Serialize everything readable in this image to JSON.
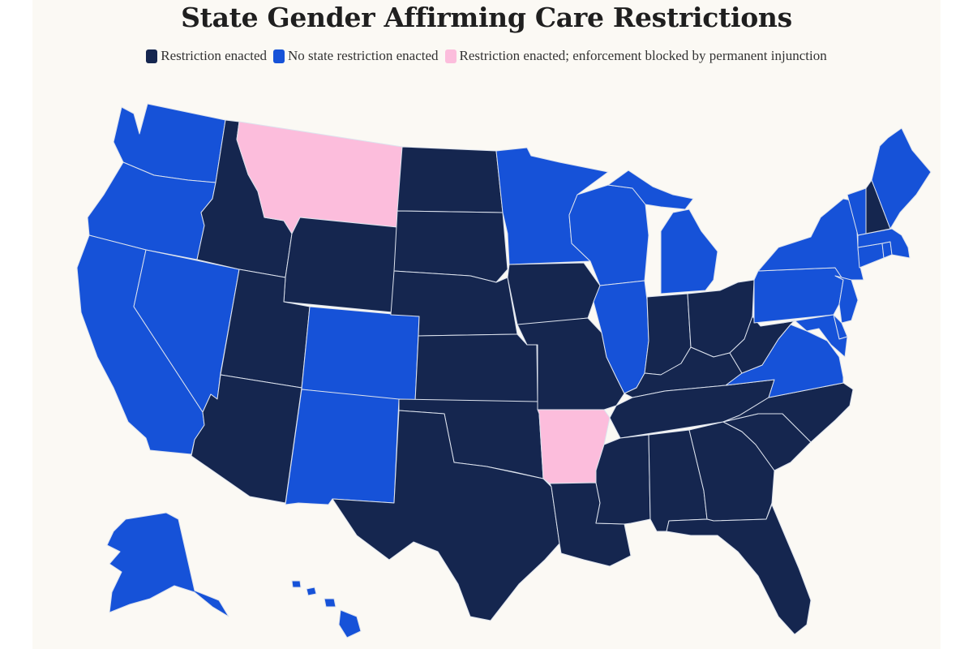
{
  "title": "State Gender Affirming Care Restrictions",
  "legend": [
    {
      "label": "Restriction enacted",
      "color": "#15264f"
    },
    {
      "label": "No state restriction enacted",
      "color": "#1652d8"
    },
    {
      "label": "Restriction enacted; enforcement blocked by permanent injunction",
      "color": "#fcbddc"
    }
  ],
  "colors": {
    "restricted": "#15264f",
    "none": "#1652d8",
    "blocked": "#fcbddc",
    "border": "#dde3ee",
    "background": "#fbf9f4"
  },
  "state_status": {
    "Washington": "none",
    "Oregon": "none",
    "California": "none",
    "Nevada": "none",
    "Idaho": "restricted",
    "Montana": "blocked",
    "Wyoming": "restricted",
    "Utah": "restricted",
    "Colorado": "none",
    "Arizona": "restricted",
    "New Mexico": "none",
    "North Dakota": "restricted",
    "South Dakota": "restricted",
    "Nebraska": "restricted",
    "Kansas": "restricted",
    "Oklahoma": "restricted",
    "Texas": "restricted",
    "Minnesota": "none",
    "Iowa": "restricted",
    "Missouri": "restricted",
    "Arkansas": "blocked",
    "Louisiana": "restricted",
    "Wisconsin": "none",
    "Illinois": "none",
    "Michigan": "none",
    "Indiana": "restricted",
    "Ohio": "restricted",
    "Kentucky": "restricted",
    "Tennessee": "restricted",
    "Mississippi": "restricted",
    "Alabama": "restricted",
    "Georgia": "restricted",
    "Florida": "restricted",
    "South Carolina": "restricted",
    "North Carolina": "restricted",
    "Virginia": "none",
    "West Virginia": "restricted",
    "Pennsylvania": "none",
    "New York": "none",
    "New Jersey": "none",
    "Delaware": "none",
    "Maryland": "none",
    "Connecticut": "none",
    "Rhode Island": "none",
    "Massachusetts": "none",
    "Vermont": "none",
    "New Hampshire": "restricted",
    "Maine": "none",
    "Alaska": "none",
    "Hawaii": "none"
  }
}
